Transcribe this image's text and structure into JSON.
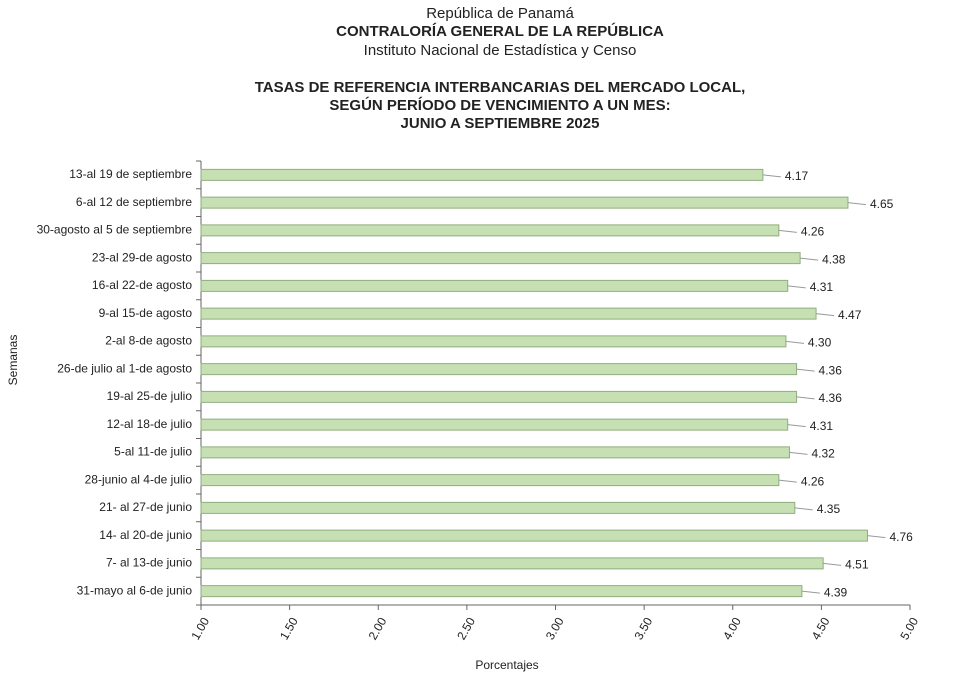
{
  "chart_data": {
    "type": "bar",
    "orientation": "horizontal",
    "header": [
      "República de Panamá",
      "CONTRALORÍA GENERAL DE LA REPÚBLICA",
      "Instituto  Nacional de Estadística y Censo"
    ],
    "title": [
      "TASAS DE REFERENCIA INTERBANCARIAS DEL MERCADO LOCAL,",
      "SEGÚN PERÍODO DE VENCIMIENTO A UN MES:",
      "JUNIO A  SEPTIEMBRE 2025"
    ],
    "x_label": "Porcentajes",
    "y_label": "Semanas",
    "categories": [
      "13-al 19 de septiembre",
      "6-al 12 de septiembre",
      "30-agosto al 5 de septiembre",
      "23-al 29-de agosto",
      "16-al 22-de agosto",
      "9-al 15-de agosto",
      "2-al 8-de agosto",
      "26-de julio al 1-de agosto",
      "19-al 25-de julio",
      "12-al 18-de julio",
      "5-al 11-de julio",
      "28-junio al 4-de julio",
      "21- al 27-de junio",
      "14- al 20-de junio",
      "7- al 13-de junio",
      "31-mayo al 6-de junio"
    ],
    "values": [
      4.17,
      4.65,
      4.26,
      4.38,
      4.31,
      4.47,
      4.3,
      4.36,
      4.36,
      4.31,
      4.32,
      4.26,
      4.35,
      4.76,
      4.51,
      4.39
    ],
    "value_labels": [
      "4.17",
      "4.65",
      "4.26",
      "4.38",
      "4.31",
      "4.47",
      "4.30",
      "4.36",
      "4.36",
      "4.31",
      "4.32",
      "4.26",
      "4.35",
      "4.76",
      "4.51",
      "4.39"
    ],
    "color": "#c6e0b4",
    "xlim": [
      1,
      5
    ],
    "xticks": [
      {
        "value": 1,
        "label": "1.00"
      },
      {
        "value": 1.5,
        "label": "1.50"
      },
      {
        "value": 2,
        "label": "2.00"
      },
      {
        "value": 2.5,
        "label": "2.50"
      },
      {
        "value": 3,
        "label": "3.00"
      },
      {
        "value": 3.5,
        "label": "3.50"
      },
      {
        "value": 4,
        "label": "4.00"
      },
      {
        "value": 4.5,
        "label": "4.50"
      },
      {
        "value": 5,
        "label": "5.00"
      }
    ],
    "grid": false
  }
}
